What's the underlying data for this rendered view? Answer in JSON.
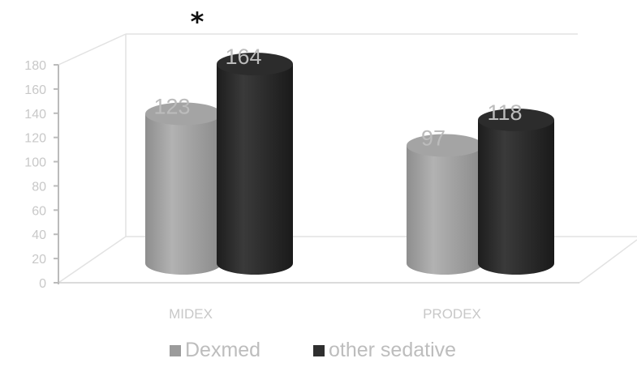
{
  "chart_data": {
    "type": "bar",
    "style": "3d-cylinder",
    "categories": [
      "MIDEX",
      "PRODEX"
    ],
    "series": [
      {
        "name": "Dexmed",
        "values": [
          123,
          97
        ],
        "color": "#9b9b9b"
      },
      {
        "name": "other sedative",
        "values": [
          164,
          118
        ],
        "color": "#2f2f2f"
      }
    ],
    "ylim": [
      0,
      180
    ],
    "yticks": [
      "0",
      "20",
      "40",
      "60",
      "80",
      "100",
      "120",
      "140",
      "160",
      "180"
    ],
    "annotation": "*",
    "legend_position": "bottom",
    "grid": false
  }
}
